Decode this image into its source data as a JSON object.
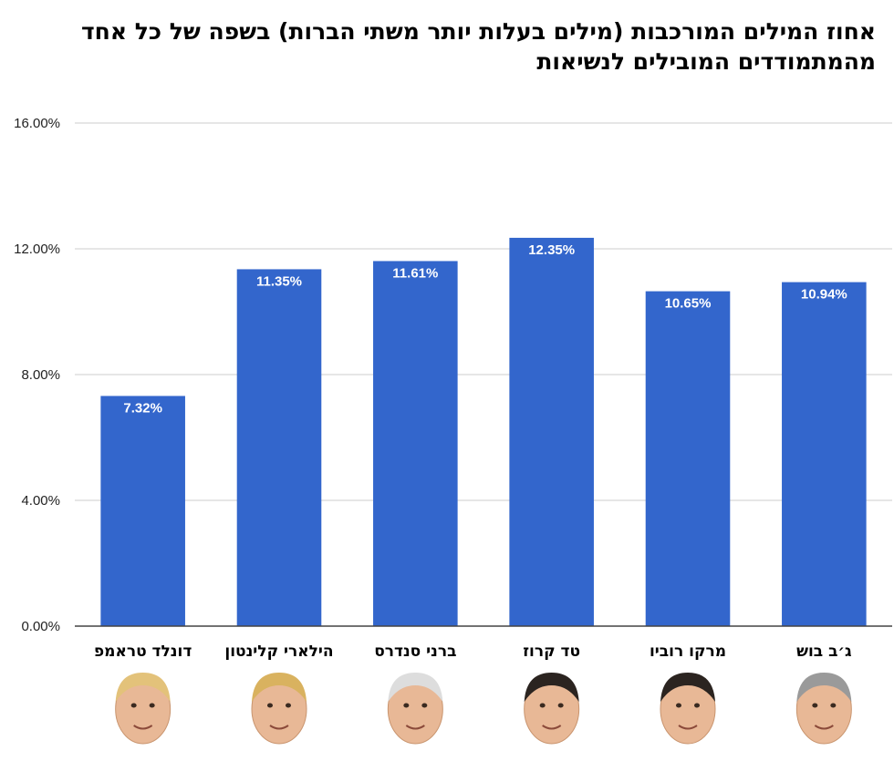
{
  "chart_data": {
    "type": "bar",
    "title": "אחוז המילים המורכבות (מילים בעלות יותר משתי הברות) בשפה של כל אחד מהמתמודדים המובילים לנשיאות",
    "categories": [
      "דונלד טראמפ",
      "הילארי קלינטון",
      "ברני סנדרס",
      "טד קרוז",
      "מרקו רוביו",
      "ג׳ב בוש"
    ],
    "values": [
      7.32,
      11.35,
      11.61,
      12.35,
      10.65,
      10.94
    ],
    "value_labels": [
      "7.32%",
      "11.35%",
      "11.61%",
      "12.35%",
      "10.65%",
      "10.94%"
    ],
    "y_ticks": [
      0,
      4,
      8,
      12,
      16
    ],
    "y_tick_labels": [
      "0.00%",
      "4.00%",
      "8.00%",
      "12.00%",
      "16.00%"
    ],
    "ylim": [
      0,
      16
    ],
    "grid": true,
    "legend": "none",
    "bar_color": "#3366cc",
    "grid_color": "#cccccc"
  }
}
